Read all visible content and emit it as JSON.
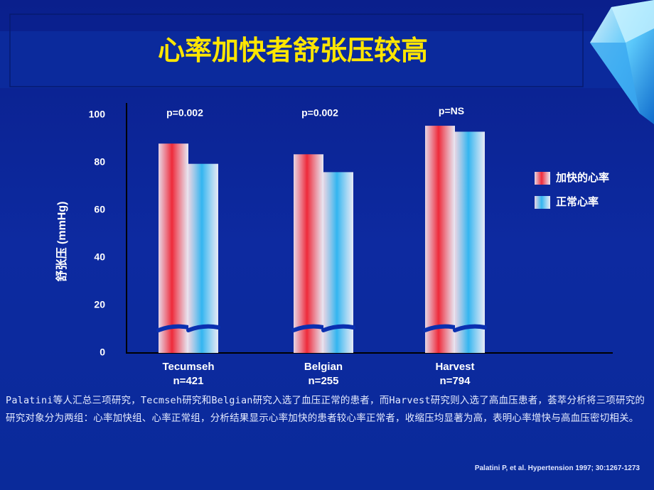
{
  "chart_data": {
    "type": "bar",
    "title": "心率加快者舒张压较高",
    "y_label": "舒张压 (mmHg)",
    "categories": [
      "Tecumseh",
      "Belgian",
      "Harvest"
    ],
    "sample_sizes": [
      "n=421",
      "n=255",
      "n=794"
    ],
    "annotations": [
      "p=0.002",
      "p=0.002",
      "p=NS"
    ],
    "series": [
      {
        "name": "加快的心率",
        "color": "#ee2a3a",
        "values": [
          88,
          83.5,
          95.5
        ]
      },
      {
        "name": "正常心率",
        "color": "#33b5f0",
        "values": [
          79.5,
          76,
          93
        ]
      }
    ],
    "ylim": [
      0,
      100
    ],
    "yticks": [
      0,
      20,
      40,
      60,
      80,
      100
    ],
    "legend": "right"
  },
  "note": "Palatini等人汇总三项研究，Tecmseh研究和Belgian研究入选了血压正常的患者，而Harvest研究则入选了高血压患者，荟萃分析将三项研究的研究对象分为两组：心率加快组、心率正常组，分析结果显示心率加快的患者较心率正常者，收缩压均显著为高，表明心率增快与高血压密切相关。",
  "citation": "Palatini P, et al.  Hypertension 1997; 30:1267-1273"
}
